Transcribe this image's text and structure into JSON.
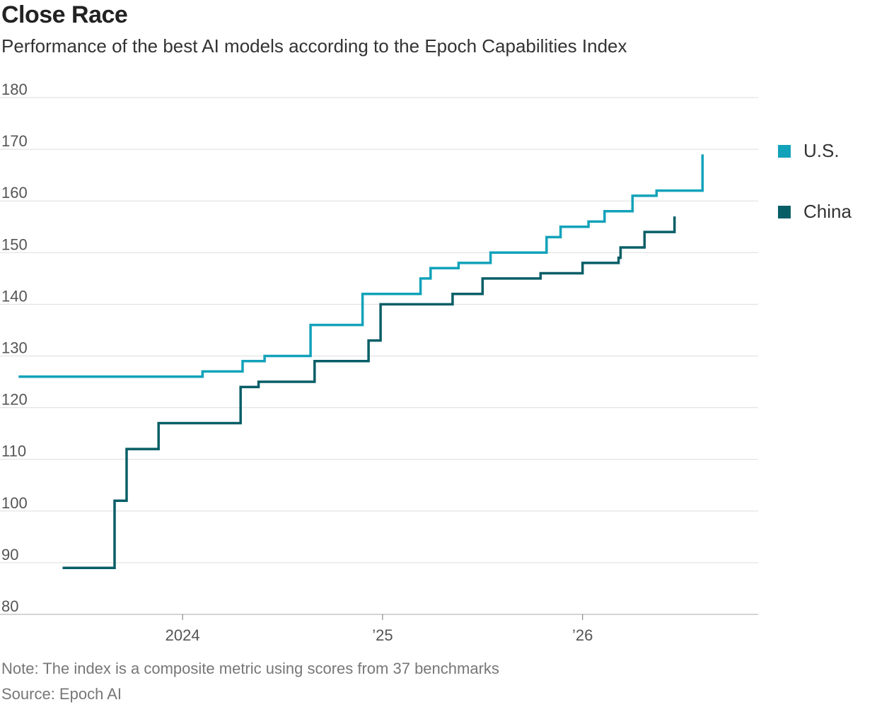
{
  "header": {
    "title": "Close Race",
    "subtitle": "Performance of the best AI models according to the Epoch Capabilities Index"
  },
  "footer": {
    "note": "Note: The index is a composite metric using scores from 37 benchmarks",
    "source": "Source: Epoch AI"
  },
  "chart_data": {
    "type": "line",
    "step": true,
    "title": "Close Race",
    "subtitle": "Performance of the best AI models according to the Epoch Capabilities Index",
    "xlabel": "",
    "ylabel": "",
    "x_unit": "year",
    "xlim": [
      2023.14,
      2026.27
    ],
    "ylim": [
      80,
      180
    ],
    "y_ticks": [
      80,
      90,
      100,
      110,
      120,
      130,
      140,
      150,
      160,
      170,
      180
    ],
    "x_ticks": [
      {
        "value": 2024,
        "label": "2024"
      },
      {
        "value": 2025,
        "label": "’25"
      },
      {
        "value": 2026,
        "label": "’26"
      }
    ],
    "grid": "horizontal",
    "legend_position": "right",
    "series": [
      {
        "name": "U.S.",
        "color": "#12a2ba",
        "points": [
          [
            2023.18,
            126
          ],
          [
            2024.1,
            127
          ],
          [
            2024.3,
            129
          ],
          [
            2024.41,
            130
          ],
          [
            2024.64,
            136
          ],
          [
            2024.9,
            142
          ],
          [
            2025.19,
            145
          ],
          [
            2025.24,
            147
          ],
          [
            2025.38,
            148
          ],
          [
            2025.54,
            150
          ],
          [
            2025.82,
            153
          ],
          [
            2025.89,
            155
          ],
          [
            2026.03,
            156
          ],
          [
            2026.11,
            158
          ],
          [
            2026.25,
            161
          ],
          [
            2026.37,
            162
          ],
          [
            2026.6,
            169
          ]
        ]
      },
      {
        "name": "China",
        "color": "#075e67",
        "points": [
          [
            2023.4,
            89
          ],
          [
            2023.66,
            102
          ],
          [
            2023.72,
            112
          ],
          [
            2023.88,
            117
          ],
          [
            2024.29,
            124
          ],
          [
            2024.38,
            125
          ],
          [
            2024.66,
            129
          ],
          [
            2024.93,
            133
          ],
          [
            2024.99,
            140
          ],
          [
            2025.35,
            142
          ],
          [
            2025.5,
            145
          ],
          [
            2025.79,
            146
          ],
          [
            2026.0,
            148
          ],
          [
            2026.18,
            149
          ],
          [
            2026.19,
            151
          ],
          [
            2026.31,
            154
          ],
          [
            2026.46,
            157
          ]
        ]
      }
    ]
  }
}
